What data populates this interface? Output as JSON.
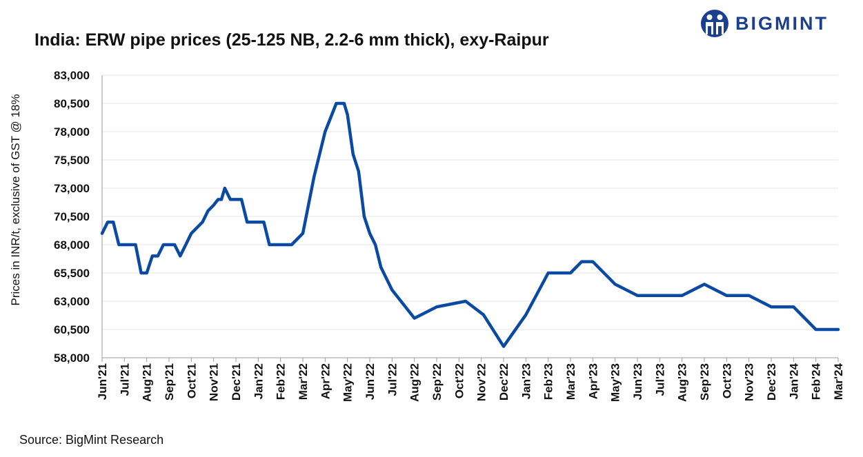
{
  "brand": {
    "name": "BIGMINT",
    "color": "#1a3f8f"
  },
  "footer": {
    "source": "Source: BigMint Research"
  },
  "chart_data": {
    "type": "line",
    "title": "India: ERW pipe prices (25-125 NB, 2.2-6 mm thick), exy-Raipur",
    "xlabel": "",
    "ylabel": "Prices in INR/t, exclusive of GST @ 18%",
    "ylim": [
      58000,
      83000
    ],
    "yticks": [
      58000,
      60500,
      63000,
      65500,
      68000,
      70500,
      73000,
      75500,
      78000,
      80500,
      83000
    ],
    "ytick_labels": [
      "58,000",
      "60,500",
      "63,000",
      "65,500",
      "68,000",
      "70,500",
      "73,000",
      "75,500",
      "78,000",
      "80,500",
      "83,000"
    ],
    "xlim": [
      0,
      33
    ],
    "xticks": [
      "Jun'21",
      "Jul'21",
      "Aug'21",
      "Sep'21",
      "Oct'21",
      "Nov'21",
      "Dec'21",
      "Jan'22",
      "Feb'22",
      "Mar'22",
      "Apr'22",
      "May'22",
      "Jun'22",
      "Jul'22",
      "Aug'22",
      "Sep'22",
      "Oct'22",
      "Nov'22",
      "Dec'22",
      "Jan'23",
      "Feb'23",
      "Mar'23",
      "Apr'23",
      "May'23",
      "Jun'23",
      "Jul'23",
      "Aug'23",
      "Sep'23",
      "Oct'23",
      "Nov'23",
      "Dec'23",
      "Jan'24",
      "Feb'24",
      "Mar'24"
    ],
    "grid": true,
    "line_color": "#0b4aa2",
    "series": [
      {
        "name": "ERW pipe price",
        "x": [
          0,
          0.25,
          0.5,
          0.75,
          1,
          1.25,
          1.5,
          1.75,
          2,
          2.25,
          2.5,
          2.75,
          3,
          3.25,
          3.5,
          3.75,
          4,
          4.25,
          4.5,
          4.75,
          5,
          5.2,
          5.35,
          5.5,
          5.75,
          6,
          6.25,
          6.5,
          6.75,
          7,
          7.25,
          7.5,
          7.75,
          8,
          8.25,
          8.5,
          9,
          9.5,
          10,
          10.5,
          10.7,
          10.85,
          11,
          11.25,
          11.5,
          11.75,
          12,
          12.25,
          12.5,
          13,
          14,
          15,
          16.3,
          17.1,
          18,
          19,
          20,
          20.5,
          21,
          21.5,
          22,
          23,
          24,
          25,
          26,
          27,
          28,
          29,
          30,
          31,
          32,
          33
        ],
        "values": [
          69000,
          70000,
          70000,
          68000,
          68000,
          68000,
          68000,
          65500,
          65500,
          67000,
          67000,
          68000,
          68000,
          68000,
          67000,
          68000,
          69000,
          69500,
          70000,
          71000,
          71500,
          72000,
          72000,
          73000,
          72000,
          72000,
          72000,
          70000,
          70000,
          70000,
          70000,
          68000,
          68000,
          68000,
          68000,
          68000,
          69000,
          74000,
          78000,
          80500,
          80500,
          80500,
          79500,
          76000,
          74500,
          70500,
          69000,
          68000,
          66000,
          64000,
          61500,
          62500,
          63000,
          61800,
          59000,
          61800,
          65500,
          65500,
          65500,
          66500,
          66500,
          64500,
          63500,
          63500,
          63500,
          64500,
          63500,
          63500,
          62500,
          62500,
          60500,
          60500
        ]
      }
    ]
  }
}
